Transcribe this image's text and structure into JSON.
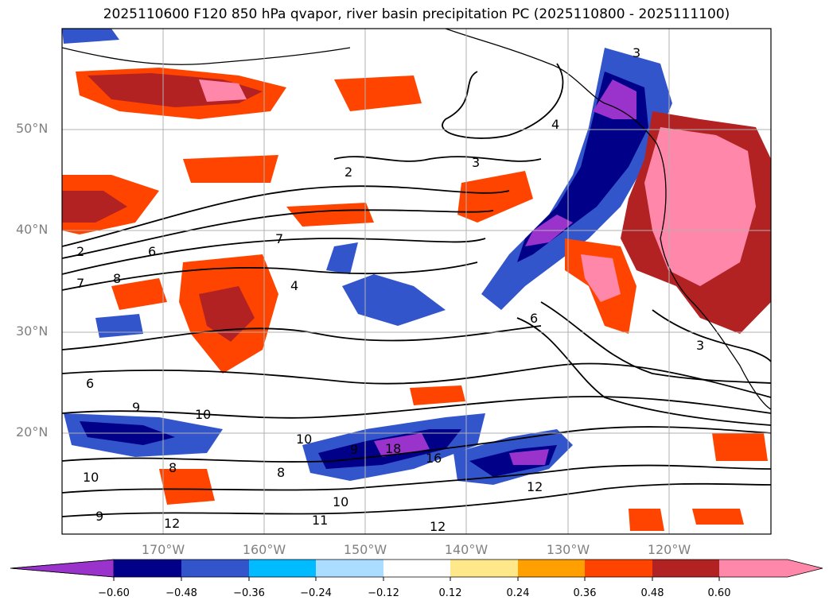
{
  "title": "2025110600 F120 850 hPa qvapor, river basin precipitation PC (2025110800 - 2025111100)",
  "map": {
    "projection": "cylindrical",
    "lon_range": [
      -180,
      -110
    ],
    "lat_range": [
      10,
      60
    ],
    "grid": true,
    "coastlines": true,
    "lat_labels": [
      "50°N",
      "40°N",
      "30°N",
      "20°N"
    ],
    "lon_labels": [
      "170°W",
      "160°W",
      "150°W",
      "140°W",
      "130°W",
      "120°W"
    ],
    "contour_field": "850 hPa qvapor",
    "contour_labels": [
      "2",
      "3",
      "4",
      "6",
      "7",
      "8",
      "9",
      "10",
      "11",
      "12",
      "16",
      "18"
    ],
    "filled_field": "river basin precipitation PC"
  },
  "colorbar": {
    "orientation": "horizontal",
    "extend": "both",
    "colors": [
      "#9933cc",
      "#000088",
      "#3355cc",
      "#00bbff",
      "#aaddff",
      "#ffffff",
      "#ffe88a",
      "#ffa000",
      "#ff4400",
      "#b22222",
      "#ff88aa",
      "#ff88bb"
    ],
    "ticks": [
      "−0.60",
      "−0.48",
      "−0.36",
      "−0.24",
      "−0.12",
      "0.12",
      "0.24",
      "0.36",
      "0.48",
      "0.60"
    ]
  }
}
